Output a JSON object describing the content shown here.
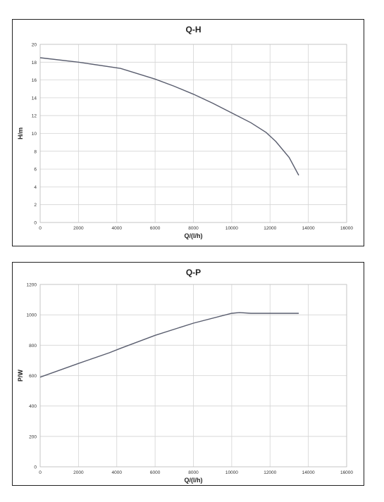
{
  "chart_data": [
    {
      "type": "line",
      "title": "Q-H",
      "xlabel": "Q/(l/h)",
      "ylabel": "H/m",
      "xlim": [
        0,
        16000
      ],
      "ylim": [
        0,
        20
      ],
      "x_ticks": [
        0,
        2000,
        4000,
        6000,
        8000,
        10000,
        12000,
        14000,
        16000
      ],
      "y_ticks": [
        0,
        2,
        4,
        6,
        8,
        10,
        12,
        14,
        16,
        18,
        20
      ],
      "grid": true,
      "series": [
        {
          "color": "#595d6e",
          "x": [
            0,
            2000,
            4200,
            6000,
            7000,
            8000,
            9000,
            10000,
            11000,
            11800,
            12300,
            13000,
            13500
          ],
          "y": [
            18.5,
            18.0,
            17.3,
            16.1,
            15.3,
            14.4,
            13.4,
            12.3,
            11.2,
            10.1,
            9.1,
            7.3,
            5.3
          ]
        }
      ]
    },
    {
      "type": "line",
      "title": "Q-P",
      "xlabel": "Q/(l/h)",
      "ylabel": "P/W",
      "xlim": [
        0,
        16000
      ],
      "ylim": [
        0,
        1200
      ],
      "x_ticks": [
        0,
        2000,
        4000,
        6000,
        8000,
        10000,
        12000,
        14000,
        16000
      ],
      "y_ticks": [
        0,
        200,
        400,
        600,
        800,
        1000,
        1200
      ],
      "grid": true,
      "series": [
        {
          "color": "#595d6e",
          "x": [
            0,
            2000,
            3600,
            4200,
            6000,
            8000,
            10000,
            10400,
            11000,
            12000,
            13500
          ],
          "y": [
            590,
            680,
            750,
            780,
            865,
            945,
            1010,
            1015,
            1010,
            1010,
            1010
          ]
        }
      ]
    }
  ]
}
